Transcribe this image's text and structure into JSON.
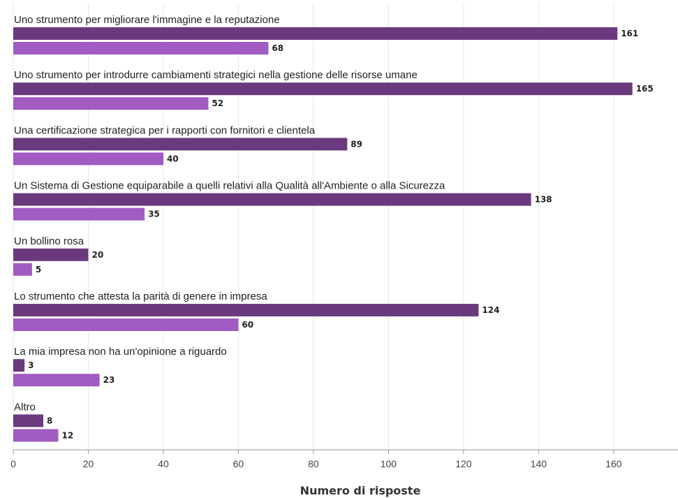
{
  "chart_data": {
    "type": "bar",
    "orientation": "horizontal",
    "categories": [
      "Uno strumento per migliorare l'immagine e la reputazione",
      "Uno strumento per introdurre cambiamenti strategici nella gestione delle risorse umane",
      "Una certificazione strategica per i rapporti con fornitori e clientela",
      "Un Sistema di Gestione equiparabile a quelli relativi alla Qualità all'Ambiente o alla Sicurezza",
      "Un bollino rosa",
      "Lo strumento che attesta la parità di genere in impresa",
      "La mia impresa non ha un'opinione a riguardo",
      "Altro"
    ],
    "series": [
      {
        "values": [
          161,
          165,
          89,
          138,
          20,
          124,
          3,
          8
        ],
        "color": "#6b3a7e"
      },
      {
        "values": [
          68,
          52,
          40,
          35,
          5,
          60,
          23,
          12
        ],
        "color": "#a15bc2"
      }
    ],
    "xlabel": "Numero di risposte",
    "xlim": [
      0,
      172
    ],
    "xticks": [
      0,
      20,
      40,
      60,
      80,
      100,
      120,
      140,
      160
    ],
    "grid": "vertical"
  }
}
